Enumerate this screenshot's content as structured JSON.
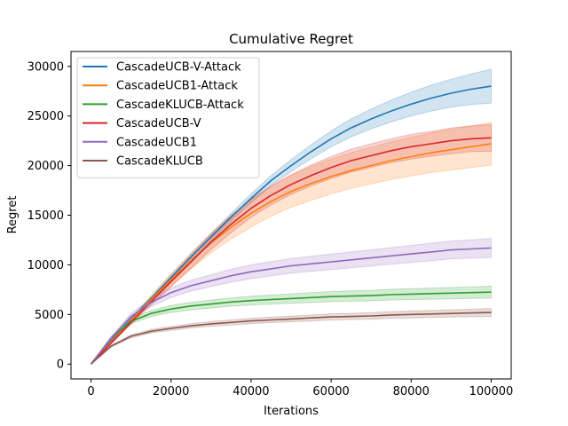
{
  "chart_data": {
    "type": "line",
    "title": "Cumulative Regret",
    "xlabel": "Iterations",
    "ylabel": "Regret",
    "xlim": [
      -5000,
      105000
    ],
    "ylim": [
      -1500,
      31500
    ],
    "xticks": [
      0,
      20000,
      40000,
      60000,
      80000,
      100000
    ],
    "yticks": [
      0,
      5000,
      10000,
      15000,
      20000,
      25000,
      30000
    ],
    "xtick_labels": [
      "0",
      "20000",
      "40000",
      "60000",
      "80000",
      "100000"
    ],
    "ytick_labels": [
      "0",
      "5000",
      "10000",
      "15000",
      "20000",
      "25000",
      "30000"
    ],
    "grid": false,
    "legend_position": "top-left",
    "x": [
      0,
      5000,
      10000,
      15000,
      20000,
      25000,
      30000,
      35000,
      40000,
      45000,
      50000,
      55000,
      60000,
      65000,
      70000,
      75000,
      80000,
      85000,
      90000,
      95000,
      100000
    ],
    "series": [
      {
        "name": "CascadeUCB-V-Attack",
        "color": "#1f77b4",
        "values": [
          0,
          2300,
          4500,
          6600,
          8700,
          10800,
          12800,
          14800,
          16700,
          18500,
          20000,
          21400,
          22700,
          23800,
          24700,
          25500,
          26200,
          26800,
          27300,
          27700,
          28000
        ],
        "band_width": [
          0,
          100,
          150,
          200,
          250,
          300,
          350,
          400,
          450,
          500,
          600,
          700,
          800,
          900,
          1000,
          1100,
          1200,
          1300,
          1400,
          1550,
          1700
        ]
      },
      {
        "name": "CascadeUCB1-Attack",
        "color": "#ff7f0e",
        "values": [
          0,
          2200,
          4400,
          6500,
          8500,
          10400,
          12200,
          13800,
          15200,
          16400,
          17400,
          18200,
          18900,
          19500,
          20000,
          20500,
          20900,
          21300,
          21600,
          21900,
          22200
        ],
        "band_width": [
          0,
          100,
          200,
          400,
          600,
          800,
          1000,
          1200,
          1400,
          1500,
          1600,
          1700,
          1750,
          1800,
          1850,
          1900,
          1950,
          2000,
          2050,
          2100,
          2150
        ]
      },
      {
        "name": "CascadeKLUCB-Attack",
        "color": "#2ca02c",
        "values": [
          0,
          2600,
          4300,
          5100,
          5550,
          5850,
          6050,
          6250,
          6400,
          6500,
          6600,
          6700,
          6800,
          6850,
          6900,
          7000,
          7050,
          7100,
          7150,
          7200,
          7250
        ],
        "band_width": [
          0,
          150,
          250,
          300,
          350,
          380,
          400,
          420,
          440,
          460,
          480,
          500,
          510,
          520,
          530,
          540,
          550,
          560,
          570,
          580,
          600
        ]
      },
      {
        "name": "CascadeUCB-V",
        "color": "#d62728",
        "values": [
          0,
          2100,
          4200,
          6300,
          8300,
          10300,
          12300,
          14100,
          15700,
          17000,
          18100,
          19000,
          19800,
          20500,
          21000,
          21500,
          21900,
          22200,
          22500,
          22700,
          22800
        ],
        "band_width": [
          0,
          100,
          200,
          350,
          500,
          650,
          750,
          850,
          900,
          950,
          1000,
          1050,
          1100,
          1150,
          1200,
          1200,
          1250,
          1250,
          1300,
          1300,
          1350
        ]
      },
      {
        "name": "CascadeUCB1",
        "color": "#9467bd",
        "values": [
          0,
          2600,
          4800,
          6200,
          7200,
          7900,
          8400,
          8900,
          9300,
          9600,
          9900,
          10100,
          10300,
          10500,
          10700,
          10900,
          11100,
          11300,
          11500,
          11600,
          11700
        ],
        "band_width": [
          0,
          150,
          300,
          400,
          500,
          550,
          600,
          650,
          700,
          720,
          740,
          760,
          780,
          800,
          820,
          840,
          860,
          880,
          900,
          920,
          950
        ]
      },
      {
        "name": "CascadeKLUCB",
        "color": "#8c564b",
        "values": [
          0,
          1800,
          2800,
          3300,
          3600,
          3850,
          4050,
          4200,
          4350,
          4450,
          4550,
          4650,
          4750,
          4800,
          4850,
          4950,
          5000,
          5050,
          5100,
          5150,
          5200
        ],
        "band_width": [
          0,
          100,
          150,
          180,
          200,
          220,
          240,
          260,
          270,
          280,
          290,
          300,
          310,
          320,
          330,
          340,
          350,
          360,
          370,
          380,
          400
        ]
      }
    ]
  }
}
